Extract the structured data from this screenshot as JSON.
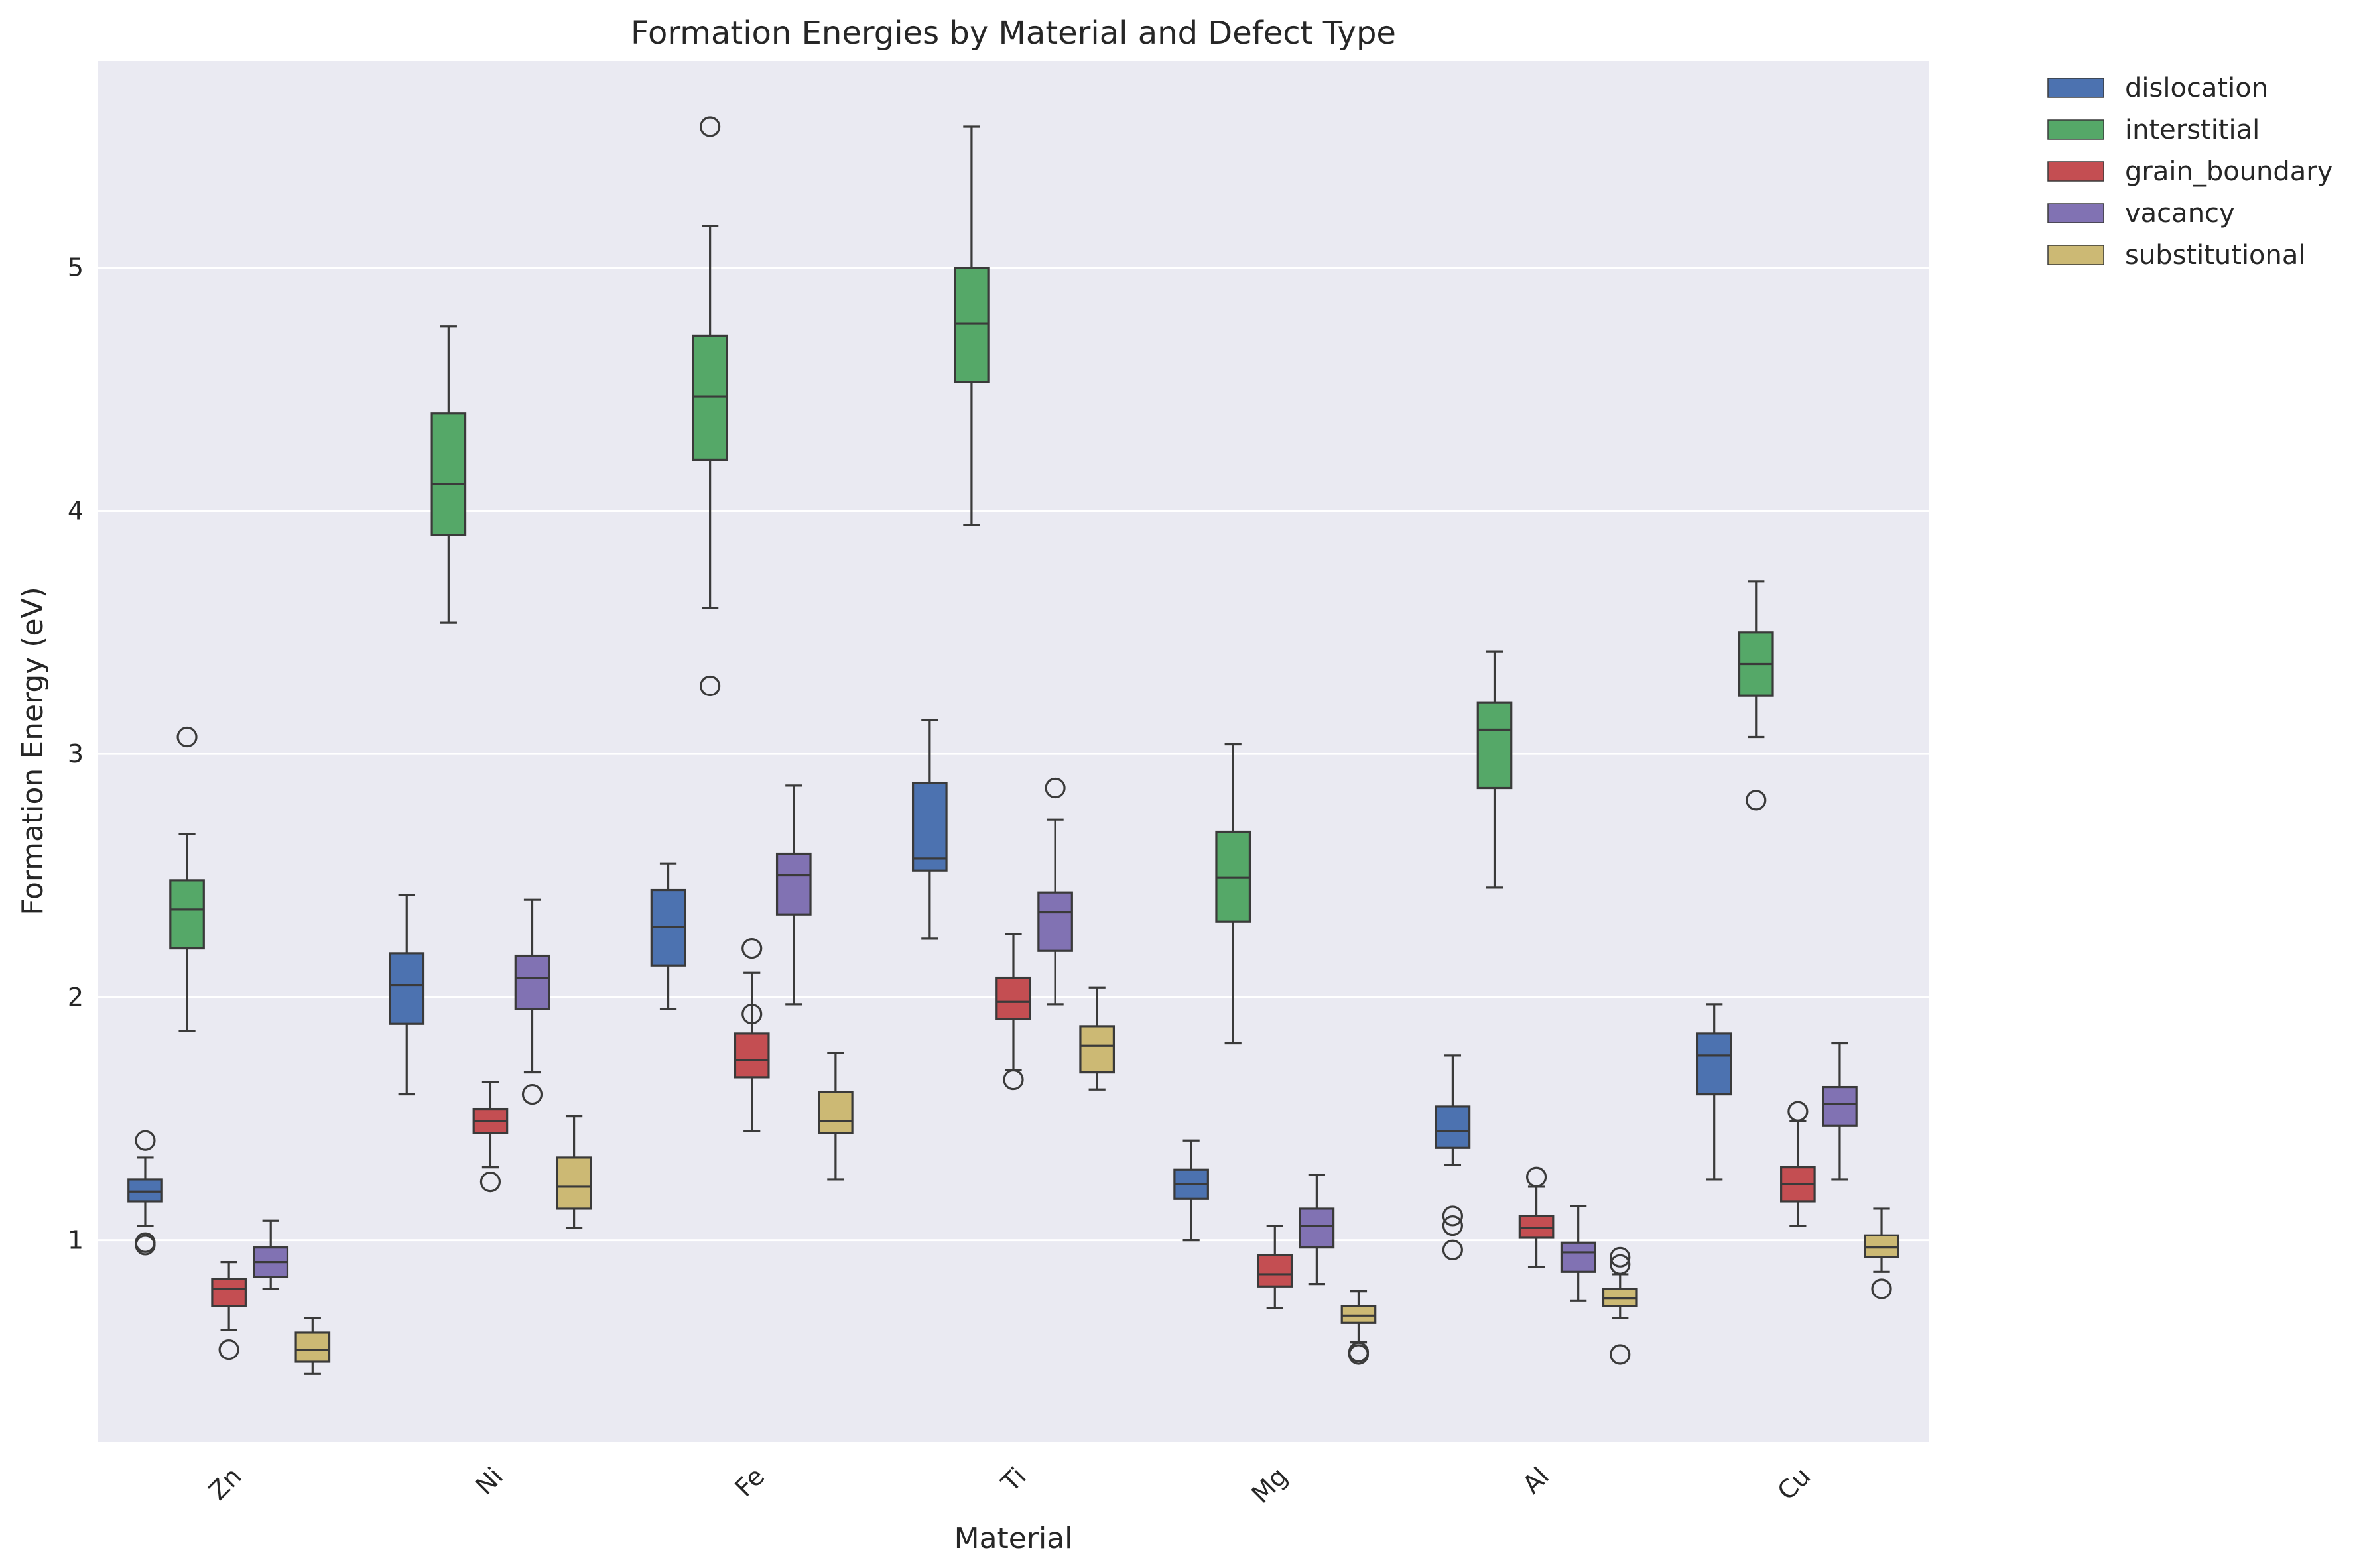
{
  "chart_data": {
    "type": "box",
    "title": "Formation Energies by Material and Defect Type",
    "xlabel": "Material",
    "ylabel": "Formation Energy (eV)",
    "categories": [
      "Zn",
      "Ni",
      "Fe",
      "Ti",
      "Mg",
      "Al",
      "Cu"
    ],
    "ylim": [
      0.17,
      5.85
    ],
    "yticks": [
      1,
      2,
      3,
      4,
      5
    ],
    "grid": true,
    "legend_position": "outside top-right",
    "series": [
      {
        "name": "dislocation",
        "color": "#4c72b0",
        "boxes": [
          {
            "whislo": 1.06,
            "q1": 1.16,
            "med": 1.2,
            "q3": 1.25,
            "whishi": 1.34,
            "fliers": [
              1.41,
              0.98,
              0.99
            ]
          },
          {
            "whislo": 1.6,
            "q1": 1.89,
            "med": 2.05,
            "q3": 2.18,
            "whishi": 2.42,
            "fliers": []
          },
          {
            "whislo": 1.95,
            "q1": 2.13,
            "med": 2.29,
            "q3": 2.44,
            "whishi": 2.55,
            "fliers": []
          },
          {
            "whislo": 2.24,
            "q1": 2.52,
            "med": 2.57,
            "q3": 2.88,
            "whishi": 3.14,
            "fliers": []
          },
          {
            "whislo": 1.0,
            "q1": 1.17,
            "med": 1.23,
            "q3": 1.29,
            "whishi": 1.41,
            "fliers": []
          },
          {
            "whislo": 1.31,
            "q1": 1.38,
            "med": 1.45,
            "q3": 1.55,
            "whishi": 1.76,
            "fliers": [
              1.1,
              1.06,
              0.96
            ]
          },
          {
            "whislo": 1.25,
            "q1": 1.6,
            "med": 1.76,
            "q3": 1.85,
            "whishi": 1.97,
            "fliers": []
          }
        ]
      },
      {
        "name": "interstitial",
        "color": "#55a868",
        "boxes": [
          {
            "whislo": 1.86,
            "q1": 2.2,
            "med": 2.36,
            "q3": 2.48,
            "whishi": 2.67,
            "fliers": [
              3.07
            ]
          },
          {
            "whislo": 3.54,
            "q1": 3.9,
            "med": 4.11,
            "q3": 4.4,
            "whishi": 4.76,
            "fliers": []
          },
          {
            "whislo": 3.6,
            "q1": 4.21,
            "med": 4.47,
            "q3": 4.72,
            "whishi": 5.17,
            "fliers": [
              5.58,
              3.28
            ]
          },
          {
            "whislo": 3.94,
            "q1": 4.53,
            "med": 4.77,
            "q3": 5.0,
            "whishi": 5.58,
            "fliers": []
          },
          {
            "whislo": 1.81,
            "q1": 2.31,
            "med": 2.49,
            "q3": 2.68,
            "whishi": 3.04,
            "fliers": []
          },
          {
            "whislo": 2.45,
            "q1": 2.86,
            "med": 3.1,
            "q3": 3.21,
            "whishi": 3.42,
            "fliers": []
          },
          {
            "whislo": 3.07,
            "q1": 3.24,
            "med": 3.37,
            "q3": 3.5,
            "whishi": 3.71,
            "fliers": [
              2.81
            ]
          }
        ]
      },
      {
        "name": "grain_boundary",
        "color": "#c44e52",
        "boxes": [
          {
            "whislo": 0.63,
            "q1": 0.73,
            "med": 0.8,
            "q3": 0.84,
            "whishi": 0.91,
            "fliers": [
              0.55
            ]
          },
          {
            "whislo": 1.3,
            "q1": 1.44,
            "med": 1.49,
            "q3": 1.54,
            "whishi": 1.65,
            "fliers": [
              1.24
            ]
          },
          {
            "whislo": 1.45,
            "q1": 1.67,
            "med": 1.74,
            "q3": 1.85,
            "whishi": 2.1,
            "fliers": [
              2.2,
              1.93
            ]
          },
          {
            "whislo": 1.7,
            "q1": 1.91,
            "med": 1.98,
            "q3": 2.08,
            "whishi": 2.26,
            "fliers": [
              1.66
            ]
          },
          {
            "whislo": 0.72,
            "q1": 0.81,
            "med": 0.86,
            "q3": 0.94,
            "whishi": 1.06,
            "fliers": []
          },
          {
            "whislo": 0.89,
            "q1": 1.01,
            "med": 1.05,
            "q3": 1.1,
            "whishi": 1.22,
            "fliers": [
              1.26
            ]
          },
          {
            "whislo": 1.06,
            "q1": 1.16,
            "med": 1.23,
            "q3": 1.3,
            "whishi": 1.49,
            "fliers": [
              1.53
            ]
          }
        ]
      },
      {
        "name": "vacancy",
        "color": "#8172b3",
        "boxes": [
          {
            "whislo": 0.8,
            "q1": 0.85,
            "med": 0.91,
            "q3": 0.97,
            "whishi": 1.08,
            "fliers": []
          },
          {
            "whislo": 1.69,
            "q1": 1.95,
            "med": 2.08,
            "q3": 2.17,
            "whishi": 2.4,
            "fliers": [
              1.6
            ]
          },
          {
            "whislo": 1.97,
            "q1": 2.34,
            "med": 2.5,
            "q3": 2.59,
            "whishi": 2.87,
            "fliers": []
          },
          {
            "whislo": 1.97,
            "q1": 2.19,
            "med": 2.35,
            "q3": 2.43,
            "whishi": 2.73,
            "fliers": [
              2.86
            ]
          },
          {
            "whislo": 0.82,
            "q1": 0.97,
            "med": 1.06,
            "q3": 1.13,
            "whishi": 1.27,
            "fliers": []
          },
          {
            "whislo": 0.75,
            "q1": 0.87,
            "med": 0.95,
            "q3": 0.99,
            "whishi": 1.14,
            "fliers": []
          },
          {
            "whislo": 1.25,
            "q1": 1.47,
            "med": 1.56,
            "q3": 1.63,
            "whishi": 1.81,
            "fliers": []
          }
        ]
      },
      {
        "name": "substitutional",
        "color": "#ccb974",
        "boxes": [
          {
            "whislo": 0.45,
            "q1": 0.5,
            "med": 0.55,
            "q3": 0.62,
            "whishi": 0.68,
            "fliers": []
          },
          {
            "whislo": 1.05,
            "q1": 1.13,
            "med": 1.22,
            "q3": 1.34,
            "whishi": 1.51,
            "fliers": []
          },
          {
            "whislo": 1.25,
            "q1": 1.44,
            "med": 1.49,
            "q3": 1.61,
            "whishi": 1.77,
            "fliers": []
          },
          {
            "whislo": 1.62,
            "q1": 1.69,
            "med": 1.8,
            "q3": 1.88,
            "whishi": 2.04,
            "fliers": []
          },
          {
            "whislo": 0.58,
            "q1": 0.66,
            "med": 0.69,
            "q3": 0.73,
            "whishi": 0.79,
            "fliers": [
              0.53,
              0.54
            ]
          },
          {
            "whislo": 0.68,
            "q1": 0.73,
            "med": 0.76,
            "q3": 0.8,
            "whishi": 0.86,
            "fliers": [
              0.93,
              0.9,
              0.53
            ]
          },
          {
            "whislo": 0.87,
            "q1": 0.93,
            "med": 0.97,
            "q3": 1.02,
            "whishi": 1.13,
            "fliers": [
              0.8
            ]
          }
        ]
      }
    ]
  }
}
